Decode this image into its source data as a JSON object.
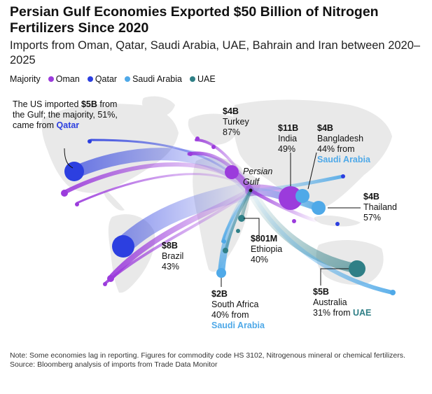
{
  "title": "Persian Gulf Economies Exported $50 Billion of Nitrogen Fertilizers Since 2020",
  "subtitle": "Imports from Oman, Qatar, Saudi Arabia, UAE, Bahrain and Iran between 2020–2025",
  "legend": {
    "label": "Majority",
    "items": [
      {
        "name": "Oman",
        "color": "#9b3bdc"
      },
      {
        "name": "Qatar",
        "color": "#2c3fe0"
      },
      {
        "name": "Saudi Arabia",
        "color": "#4fa9e8"
      },
      {
        "name": "UAE",
        "color": "#2f7f86"
      }
    ]
  },
  "origin_label": "Persian Gulf",
  "annotations": {
    "us": {
      "text_a": "The US imported ",
      "value": "$5B",
      "text_b": " from the Gulf; the majority, 51%, came from ",
      "highlight": "Qatar"
    },
    "turkey": {
      "value": "$4B",
      "country": "Turkey",
      "share": "87%"
    },
    "india": {
      "value": "$11B",
      "country": "India",
      "share": "49%"
    },
    "bangladesh": {
      "value": "$4B",
      "country": "Bangladesh",
      "share": "44% from",
      "highlight": "Saudi Arabia"
    },
    "thailand": {
      "value": "$4B",
      "country": "Thailand",
      "share": "57%"
    },
    "brazil": {
      "value": "$8B",
      "country": "Brazil",
      "share": "43%"
    },
    "ethiopia": {
      "value": "$801M",
      "country": "Ethiopia",
      "share": "40%"
    },
    "south_africa": {
      "value": "$2B",
      "country": "South Africa",
      "share": "40% from",
      "highlight": "Saudi Arabia"
    },
    "australia": {
      "value": "$5B",
      "country": "Australia",
      "share": "31% from",
      "highlight": "UAE"
    }
  },
  "footer": {
    "note": "Note: Some economies lag in reporting. Figures for commodity code HS 3102, Nitrogenous mineral or chemical fertilizers.",
    "source": "Source: Bloomberg analysis of imports from Trade Data Monitor"
  },
  "chart_data": {
    "type": "flow-map",
    "title": "Persian Gulf Economies Exported $50 Billion of Nitrogen Fertilizers Since 2020",
    "unit": "USD imports 2020–2025",
    "origin": "Persian Gulf",
    "series": [
      {
        "name": "United States",
        "value_usd_b": 5,
        "value_label": "$5B",
        "majority": "Qatar",
        "share_pct": 51
      },
      {
        "name": "Turkey",
        "value_usd_b": 4,
        "value_label": "$4B",
        "majority": "Oman",
        "share_pct": 87
      },
      {
        "name": "India",
        "value_usd_b": 11,
        "value_label": "$11B",
        "majority": "Oman",
        "share_pct": 49
      },
      {
        "name": "Bangladesh",
        "value_usd_b": 4,
        "value_label": "$4B",
        "majority": "Saudi Arabia",
        "share_pct": 44
      },
      {
        "name": "Thailand",
        "value_usd_b": 4,
        "value_label": "$4B",
        "majority": "Saudi Arabia",
        "share_pct": 57
      },
      {
        "name": "Brazil",
        "value_usd_b": 8,
        "value_label": "$8B",
        "majority": "Qatar",
        "share_pct": 43
      },
      {
        "name": "Ethiopia",
        "value_usd_b": 0.801,
        "value_label": "$801M",
        "majority": "UAE",
        "share_pct": 40
      },
      {
        "name": "South Africa",
        "value_usd_b": 2,
        "value_label": "$2B",
        "majority": "Saudi Arabia",
        "share_pct": 40
      },
      {
        "name": "Australia",
        "value_usd_b": 5,
        "value_label": "$5B",
        "majority": "UAE",
        "share_pct": 31
      }
    ]
  }
}
